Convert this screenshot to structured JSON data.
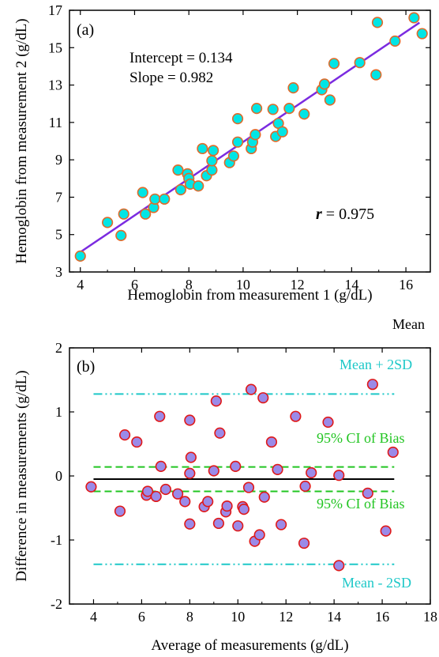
{
  "chart_data": [
    {
      "type": "scatter",
      "panel_label": "(a)",
      "xlabel": "Hemoglobin from measurement 1 (g/dL)",
      "ylabel": "Hemoglobin from measurement 2 (g/dL)",
      "xlim": [
        3.6,
        16.9
      ],
      "ylim": [
        3,
        17
      ],
      "xticks": [
        4,
        6,
        8,
        10,
        12,
        14,
        16
      ],
      "yticks": [
        3,
        5,
        7,
        9,
        11,
        13,
        15,
        17
      ],
      "grid": false,
      "annotations": {
        "intercept": "Intercept = 0.134",
        "slope": "Slope = 0.982",
        "r_symbol": "r",
        "r_value": " = 0.975"
      },
      "fit_line": {
        "intercept": 0.134,
        "slope": 0.982,
        "x_range": [
          4.0,
          16.5
        ],
        "color": "#7b2be0"
      },
      "marker": {
        "fill": "#00e5e5",
        "edge": "#e06a2a"
      },
      "points": [
        [
          4.0,
          3.85
        ],
        [
          5.0,
          5.65
        ],
        [
          5.5,
          4.95
        ],
        [
          5.6,
          6.1
        ],
        [
          6.3,
          7.25
        ],
        [
          6.4,
          6.1
        ],
        [
          6.7,
          6.45
        ],
        [
          6.75,
          6.9
        ],
        [
          7.1,
          6.9
        ],
        [
          7.6,
          8.45
        ],
        [
          7.7,
          7.4
        ],
        [
          7.95,
          8.25
        ],
        [
          8.0,
          8.0
        ],
        [
          8.05,
          7.7
        ],
        [
          8.35,
          7.6
        ],
        [
          8.5,
          9.6
        ],
        [
          8.65,
          8.15
        ],
        [
          8.85,
          8.45
        ],
        [
          8.85,
          8.95
        ],
        [
          8.9,
          9.5
        ],
        [
          9.5,
          8.85
        ],
        [
          9.65,
          9.2
        ],
        [
          9.8,
          9.95
        ],
        [
          9.8,
          11.2
        ],
        [
          10.3,
          9.6
        ],
        [
          10.35,
          9.95
        ],
        [
          10.45,
          10.35
        ],
        [
          10.5,
          11.75
        ],
        [
          11.1,
          11.7
        ],
        [
          11.2,
          10.25
        ],
        [
          11.3,
          10.95
        ],
        [
          11.45,
          10.5
        ],
        [
          11.7,
          11.75
        ],
        [
          11.85,
          12.85
        ],
        [
          12.25,
          11.45
        ],
        [
          12.9,
          12.75
        ],
        [
          13.0,
          13.05
        ],
        [
          13.2,
          12.2
        ],
        [
          13.35,
          14.15
        ],
        [
          14.3,
          14.2
        ],
        [
          14.9,
          13.55
        ],
        [
          14.95,
          16.35
        ],
        [
          15.6,
          15.35
        ],
        [
          16.3,
          16.6
        ],
        [
          16.6,
          15.75
        ]
      ]
    },
    {
      "type": "scatter",
      "panel_label": "(b)",
      "xlabel": "Average of measurements (g/dL)",
      "ylabel": "Difference in measurements (g/dL)",
      "xlim": [
        3,
        18
      ],
      "ylim": [
        -2,
        2
      ],
      "xticks": [
        4,
        6,
        8,
        10,
        12,
        14,
        16,
        18
      ],
      "yticks": [
        -2,
        -1,
        0,
        1,
        2
      ],
      "grid": false,
      "reference_lines": [
        {
          "name": "Mean + 2SD",
          "y": 1.28,
          "style": "dash-dot-dot",
          "color": "#1ec8c8"
        },
        {
          "name": "95% CI of Bias",
          "y": 0.14,
          "style": "dashed",
          "color": "#22c522"
        },
        {
          "name": "Mean",
          "y": -0.05,
          "style": "solid",
          "color": "#000000"
        },
        {
          "name": "95% CI of Bias",
          "y": -0.24,
          "style": "dashed",
          "color": "#22c522"
        },
        {
          "name": "Mean - 2SD",
          "y": -1.38,
          "style": "dash-dot-dot",
          "color": "#1ec8c8"
        }
      ],
      "line_x_range": [
        4.0,
        16.5
      ],
      "marker": {
        "fill": "#9b8ae8",
        "edge": "#e01818"
      },
      "points": [
        [
          3.9,
          -0.17
        ],
        [
          5.1,
          -0.55
        ],
        [
          5.3,
          0.64
        ],
        [
          5.8,
          0.53
        ],
        [
          6.2,
          -0.3
        ],
        [
          6.25,
          -0.24
        ],
        [
          6.6,
          -0.32
        ],
        [
          6.75,
          0.93
        ],
        [
          6.8,
          0.15
        ],
        [
          7.0,
          -0.21
        ],
        [
          7.5,
          -0.28
        ],
        [
          7.8,
          -0.4
        ],
        [
          8.0,
          0.87
        ],
        [
          8.0,
          0.04
        ],
        [
          8.05,
          0.29
        ],
        [
          8.0,
          -0.75
        ],
        [
          8.6,
          -0.48
        ],
        [
          8.75,
          -0.4
        ],
        [
          9.0,
          0.08
        ],
        [
          9.1,
          1.17
        ],
        [
          9.2,
          -0.74
        ],
        [
          9.25,
          0.67
        ],
        [
          9.5,
          -0.56
        ],
        [
          9.55,
          -0.47
        ],
        [
          9.9,
          0.15
        ],
        [
          10.0,
          -0.78
        ],
        [
          10.2,
          -0.48
        ],
        [
          10.25,
          -0.52
        ],
        [
          10.45,
          -0.18
        ],
        [
          10.55,
          1.35
        ],
        [
          10.7,
          -1.02
        ],
        [
          10.9,
          -0.92
        ],
        [
          11.05,
          1.22
        ],
        [
          11.1,
          -0.33
        ],
        [
          11.4,
          0.53
        ],
        [
          11.65,
          0.1
        ],
        [
          11.8,
          -0.76
        ],
        [
          12.4,
          0.93
        ],
        [
          12.75,
          -1.05
        ],
        [
          12.8,
          -0.16
        ],
        [
          13.05,
          0.05
        ],
        [
          13.75,
          0.84
        ],
        [
          14.2,
          0.01
        ],
        [
          14.2,
          -1.4
        ],
        [
          15.4,
          -0.27
        ],
        [
          15.6,
          1.43
        ],
        [
          16.15,
          -0.86
        ],
        [
          16.45,
          0.37
        ]
      ]
    }
  ]
}
